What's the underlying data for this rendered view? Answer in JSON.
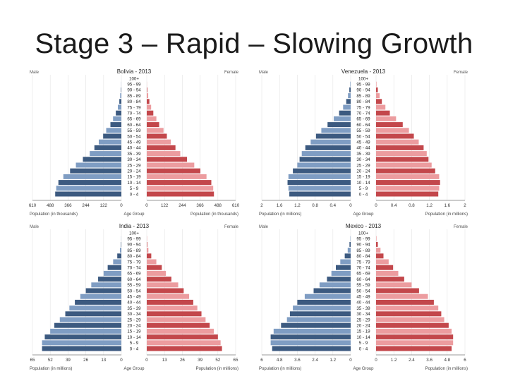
{
  "slide": {
    "title": "Stage 3 – Rapid – Slowing Growth"
  },
  "colors": {
    "male_dark": "#3c5a80",
    "male_light": "#7f9dc3",
    "female_dark": "#c3474b",
    "female_light": "#ec9c9f"
  },
  "chart_data": [
    {
      "type": "bar",
      "title": "Bolivia - 2013",
      "left_label": "Male",
      "right_label": "Female",
      "age_groups": [
        "100+",
        "95 - 99",
        "90 - 94",
        "85 - 89",
        "80 - 84",
        "75 - 79",
        "70 - 74",
        "65 - 69",
        "60 - 64",
        "55 - 59",
        "50 - 54",
        "45 - 49",
        "40 - 44",
        "35 - 39",
        "30 - 34",
        "25 - 29",
        "20 - 24",
        "15 - 19",
        "10 - 14",
        "5 - 9",
        "0 - 4"
      ],
      "male": [
        0,
        1,
        3,
        8,
        14,
        24,
        38,
        57,
        75,
        104,
        125,
        155,
        185,
        217,
        264,
        312,
        352,
        398,
        432,
        447,
        454
      ],
      "female": [
        0,
        1,
        4,
        10,
        18,
        30,
        45,
        66,
        85,
        115,
        138,
        165,
        197,
        230,
        276,
        326,
        368,
        410,
        443,
        456,
        461
      ],
      "ticks_left": [
        "610",
        "488",
        "366",
        "244",
        "122",
        "0"
      ],
      "ticks_right": [
        "0",
        "122",
        "244",
        "366",
        "488",
        "610"
      ],
      "xmax": 610,
      "xlabel_left": "Population (in thousands)",
      "xlabel_center": "Age Group",
      "xlabel_right": "Population (in thousands)"
    },
    {
      "type": "bar",
      "title": "Venezuela - 2013",
      "left_label": "Male",
      "right_label": "Female",
      "age_groups": [
        "100+",
        "95 - 99",
        "90 - 94",
        "85 - 89",
        "80 - 84",
        "75 - 79",
        "70 - 74",
        "65 - 69",
        "60 - 64",
        "55 - 59",
        "50 - 54",
        "45 - 49",
        "40 - 44",
        "35 - 39",
        "30 - 34",
        "25 - 29",
        "20 - 24",
        "15 - 19",
        "10 - 14",
        "5 - 9",
        "0 - 4"
      ],
      "male": [
        0,
        0.01,
        0.03,
        0.06,
        0.1,
        0.17,
        0.26,
        0.38,
        0.52,
        0.66,
        0.78,
        0.9,
        1.02,
        1.1,
        1.15,
        1.2,
        1.3,
        1.4,
        1.42,
        1.4,
        1.38
      ],
      "female": [
        0,
        0.01,
        0.04,
        0.08,
        0.13,
        0.21,
        0.31,
        0.45,
        0.6,
        0.74,
        0.85,
        0.96,
        1.07,
        1.14,
        1.18,
        1.25,
        1.33,
        1.42,
        1.44,
        1.42,
        1.4
      ],
      "ticks_left": [
        "2",
        "1.6",
        "1.2",
        "0.8",
        "0.4",
        "0"
      ],
      "ticks_right": [
        "0",
        "0.4",
        "0.8",
        "1.2",
        "1.6",
        "2"
      ],
      "xmax": 2,
      "xlabel_left": "Population (in millions)",
      "xlabel_center": "Age Group",
      "xlabel_right": "Population (in millions)"
    },
    {
      "type": "bar",
      "title": "India - 2013",
      "left_label": "Male",
      "right_label": "Female",
      "age_groups": [
        "100+",
        "95 - 99",
        "90 - 94",
        "85 - 89",
        "80 - 84",
        "75 - 79",
        "70 - 74",
        "65 - 69",
        "60 - 64",
        "55 - 59",
        "50 - 54",
        "45 - 49",
        "40 - 44",
        "35 - 39",
        "30 - 34",
        "25 - 29",
        "20 - 24",
        "15 - 19",
        "10 - 14",
        "5 - 9",
        "0 - 4"
      ],
      "male": [
        0,
        0.1,
        0.3,
        1,
        3,
        6,
        10,
        13,
        17,
        22,
        26,
        30,
        34,
        38,
        41,
        45,
        49,
        52,
        56,
        58,
        58
      ],
      "female": [
        0,
        0.2,
        0.4,
        1.2,
        3.3,
        7,
        11,
        14,
        18,
        23,
        27,
        31,
        34,
        37,
        40,
        43,
        46,
        49,
        52,
        54,
        55
      ],
      "ticks_left": [
        "65",
        "52",
        "39",
        "26",
        "13",
        "0"
      ],
      "ticks_right": [
        "0",
        "13",
        "26",
        "39",
        "52",
        "65"
      ],
      "xmax": 65,
      "xlabel_left": "Population (in millions)",
      "xlabel_center": "Age Group",
      "xlabel_right": "Population (in millions)"
    },
    {
      "type": "bar",
      "title": "Mexico - 2013",
      "left_label": "Male",
      "right_label": "Female",
      "age_groups": [
        "100+",
        "95 - 99",
        "90 - 94",
        "85 - 89",
        "80 - 84",
        "75 - 79",
        "70 - 74",
        "65 - 69",
        "60 - 64",
        "55 - 59",
        "50 - 54",
        "45 - 49",
        "40 - 44",
        "35 - 39",
        "30 - 34",
        "25 - 29",
        "20 - 24",
        "15 - 19",
        "10 - 14",
        "5 - 9",
        "0 - 4"
      ],
      "male": [
        0,
        0.02,
        0.08,
        0.2,
        0.4,
        0.7,
        1,
        1.3,
        1.6,
        2.1,
        2.5,
        3.1,
        3.6,
        3.9,
        4.1,
        4.3,
        4.7,
        5.2,
        5.4,
        5.4,
        5.3
      ],
      "female": [
        0,
        0.03,
        0.12,
        0.3,
        0.5,
        0.85,
        1.15,
        1.5,
        1.9,
        2.4,
        2.9,
        3.5,
        3.9,
        4.2,
        4.4,
        4.6,
        4.9,
        5.1,
        5.2,
        5.2,
        5.1
      ],
      "ticks_left": [
        "6",
        "4.8",
        "3.6",
        "2.4",
        "1.2",
        "0"
      ],
      "ticks_right": [
        "0",
        "1.2",
        "2.4",
        "3.6",
        "4.8",
        "6"
      ],
      "xmax": 6,
      "xlabel_left": "Population (in millions)",
      "xlabel_center": "Age Group",
      "xlabel_right": "Population (in millions)"
    }
  ]
}
